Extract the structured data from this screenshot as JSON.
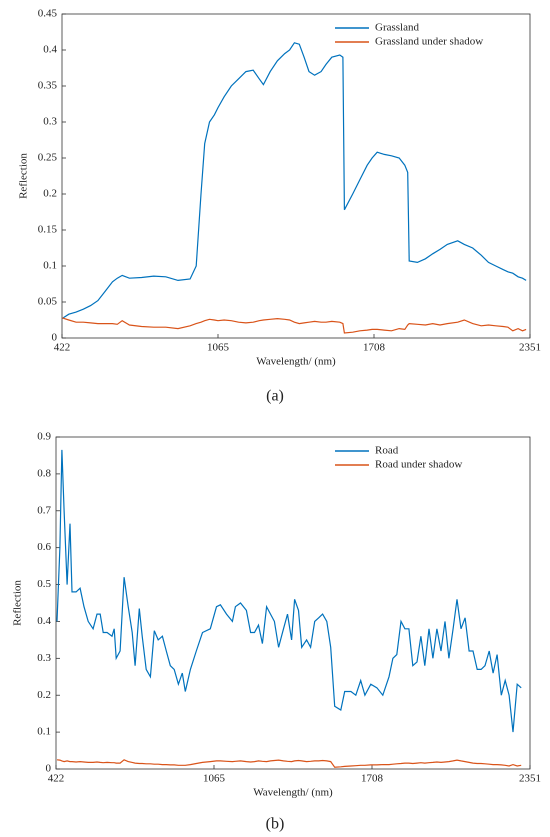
{
  "chart_data": [
    {
      "type": "line",
      "caption": "(a)",
      "xlabel": "Wavelength/ (nm)",
      "ylabel": "Reflection",
      "xlim": [
        422,
        2351
      ],
      "xticks": [
        422,
        1065,
        1708,
        2351
      ],
      "ylim": [
        0,
        0.45
      ],
      "yticks": [
        0,
        0.05,
        0.1,
        0.15,
        0.2,
        0.25,
        0.3,
        0.35,
        0.4,
        0.45
      ],
      "legend": "upper right",
      "x": [
        422,
        450,
        480,
        510,
        540,
        570,
        600,
        630,
        650,
        670,
        700,
        750,
        800,
        850,
        900,
        950,
        975,
        995,
        1010,
        1030,
        1050,
        1065,
        1090,
        1120,
        1150,
        1180,
        1210,
        1235,
        1252,
        1280,
        1310,
        1340,
        1360,
        1380,
        1400,
        1420,
        1440,
        1463,
        1490,
        1510,
        1534,
        1567,
        1580,
        1586,
        1620,
        1650,
        1680,
        1700,
        1721,
        1750,
        1780,
        1812,
        1835,
        1847,
        1853,
        1887,
        1920,
        1950,
        1980,
        2010,
        2053,
        2080,
        2115,
        2150,
        2180,
        2210,
        2240,
        2260,
        2280,
        2302,
        2320,
        2335
      ],
      "series": [
        {
          "name": "Grassland",
          "color": "#0072bd",
          "values": [
            0.027,
            0.033,
            0.036,
            0.04,
            0.045,
            0.052,
            0.065,
            0.078,
            0.083,
            0.087,
            0.083,
            0.084,
            0.086,
            0.085,
            0.08,
            0.082,
            0.1,
            0.2,
            0.27,
            0.3,
            0.31,
            0.32,
            0.335,
            0.35,
            0.36,
            0.37,
            0.372,
            0.36,
            0.352,
            0.37,
            0.385,
            0.395,
            0.4,
            0.41,
            0.408,
            0.39,
            0.37,
            0.365,
            0.37,
            0.38,
            0.39,
            0.393,
            0.39,
            0.178,
            0.2,
            0.22,
            0.24,
            0.25,
            0.258,
            0.255,
            0.253,
            0.25,
            0.24,
            0.23,
            0.107,
            0.105,
            0.11,
            0.117,
            0.123,
            0.13,
            0.135,
            0.13,
            0.125,
            0.115,
            0.105,
            0.1,
            0.095,
            0.092,
            0.09,
            0.085,
            0.083,
            0.08
          ]
        },
        {
          "name": "Grassland under shadow",
          "color": "#d95319",
          "values": [
            0.028,
            0.025,
            0.022,
            0.022,
            0.021,
            0.02,
            0.02,
            0.02,
            0.019,
            0.024,
            0.018,
            0.016,
            0.015,
            0.015,
            0.013,
            0.017,
            0.02,
            0.022,
            0.024,
            0.026,
            0.025,
            0.024,
            0.025,
            0.024,
            0.022,
            0.021,
            0.022,
            0.024,
            0.025,
            0.026,
            0.027,
            0.026,
            0.025,
            0.022,
            0.02,
            0.021,
            0.022,
            0.023,
            0.022,
            0.022,
            0.023,
            0.022,
            0.02,
            0.007,
            0.008,
            0.01,
            0.011,
            0.012,
            0.012,
            0.011,
            0.01,
            0.013,
            0.012,
            0.018,
            0.02,
            0.019,
            0.018,
            0.02,
            0.018,
            0.02,
            0.022,
            0.025,
            0.02,
            0.017,
            0.018,
            0.017,
            0.016,
            0.015,
            0.01,
            0.013,
            0.01,
            0.012
          ]
        }
      ]
    },
    {
      "type": "line",
      "caption": "(b)",
      "xlabel": "Wavelength/ (nm)",
      "ylabel": "Reflection",
      "xlim": [
        422,
        2351
      ],
      "xticks": [
        422,
        1065,
        1708,
        2351
      ],
      "ylim": [
        0,
        0.9
      ],
      "yticks": [
        0,
        0.1,
        0.2,
        0.3,
        0.4,
        0.5,
        0.6,
        0.7,
        0.8,
        0.9
      ],
      "legend": "upper right",
      "x": [
        426,
        438,
        446,
        455,
        467,
        479,
        487,
        504,
        520,
        536,
        553,
        573,
        589,
        602,
        614,
        630,
        650,
        659,
        667,
        683,
        699,
        716,
        732,
        744,
        761,
        773,
        789,
        806,
        822,
        838,
        855,
        871,
        887,
        903,
        920,
        936,
        948,
        969,
        993,
        1018,
        1050,
        1075,
        1091,
        1116,
        1140,
        1152,
        1173,
        1197,
        1214,
        1230,
        1246,
        1262,
        1279,
        1295,
        1311,
        1328,
        1348,
        1364,
        1381,
        1393,
        1409,
        1422,
        1442,
        1458,
        1475,
        1491,
        1507,
        1524,
        1540,
        1556,
        1581,
        1597,
        1622,
        1642,
        1662,
        1679,
        1703,
        1728,
        1752,
        1777,
        1793,
        1809,
        1826,
        1842,
        1858,
        1874,
        1891,
        1907,
        1923,
        1940,
        1956,
        1972,
        1989,
        2005,
        2021,
        2038,
        2054,
        2070,
        2087,
        2103,
        2119,
        2136,
        2152,
        2168,
        2185,
        2201,
        2217,
        2234,
        2250,
        2266,
        2282,
        2299,
        2315
      ],
      "series": [
        {
          "name": "Road",
          "color": "#0072bd",
          "values": [
            0.4,
            0.6,
            0.865,
            0.7,
            0.5,
            0.665,
            0.48,
            0.48,
            0.49,
            0.44,
            0.4,
            0.38,
            0.42,
            0.42,
            0.37,
            0.37,
            0.36,
            0.38,
            0.3,
            0.32,
            0.52,
            0.44,
            0.37,
            0.28,
            0.435,
            0.36,
            0.27,
            0.25,
            0.375,
            0.35,
            0.36,
            0.32,
            0.28,
            0.27,
            0.23,
            0.26,
            0.21,
            0.27,
            0.32,
            0.37,
            0.38,
            0.44,
            0.445,
            0.42,
            0.4,
            0.44,
            0.45,
            0.43,
            0.37,
            0.37,
            0.39,
            0.34,
            0.44,
            0.42,
            0.4,
            0.33,
            0.38,
            0.42,
            0.35,
            0.46,
            0.43,
            0.33,
            0.35,
            0.33,
            0.4,
            0.41,
            0.42,
            0.4,
            0.33,
            0.17,
            0.16,
            0.21,
            0.21,
            0.2,
            0.24,
            0.2,
            0.23,
            0.22,
            0.2,
            0.25,
            0.3,
            0.31,
            0.4,
            0.38,
            0.38,
            0.28,
            0.29,
            0.36,
            0.28,
            0.38,
            0.3,
            0.38,
            0.32,
            0.4,
            0.3,
            0.38,
            0.46,
            0.38,
            0.41,
            0.32,
            0.32,
            0.27,
            0.27,
            0.28,
            0.32,
            0.26,
            0.31,
            0.2,
            0.24,
            0.2,
            0.1,
            0.23,
            0.22
          ]
        },
        {
          "name": "Road under shadow",
          "color": "#d95319",
          "values": [
            0.025,
            0.024,
            0.022,
            0.02,
            0.022,
            0.02,
            0.02,
            0.019,
            0.02,
            0.019,
            0.018,
            0.018,
            0.019,
            0.018,
            0.017,
            0.018,
            0.017,
            0.017,
            0.016,
            0.016,
            0.025,
            0.02,
            0.018,
            0.016,
            0.015,
            0.015,
            0.014,
            0.014,
            0.013,
            0.013,
            0.012,
            0.012,
            0.011,
            0.011,
            0.01,
            0.01,
            0.01,
            0.012,
            0.015,
            0.018,
            0.02,
            0.022,
            0.022,
            0.021,
            0.02,
            0.021,
            0.022,
            0.02,
            0.019,
            0.02,
            0.022,
            0.021,
            0.02,
            0.022,
            0.023,
            0.024,
            0.022,
            0.021,
            0.02,
            0.022,
            0.023,
            0.022,
            0.02,
            0.021,
            0.022,
            0.022,
            0.023,
            0.022,
            0.02,
            0.005,
            0.006,
            0.007,
            0.008,
            0.009,
            0.01,
            0.01,
            0.011,
            0.011,
            0.012,
            0.012,
            0.013,
            0.014,
            0.015,
            0.016,
            0.016,
            0.015,
            0.016,
            0.017,
            0.016,
            0.017,
            0.018,
            0.019,
            0.018,
            0.019,
            0.02,
            0.022,
            0.024,
            0.022,
            0.02,
            0.018,
            0.016,
            0.015,
            0.015,
            0.014,
            0.013,
            0.012,
            0.012,
            0.011,
            0.01,
            0.008,
            0.012,
            0.008,
            0.01
          ]
        }
      ]
    }
  ]
}
